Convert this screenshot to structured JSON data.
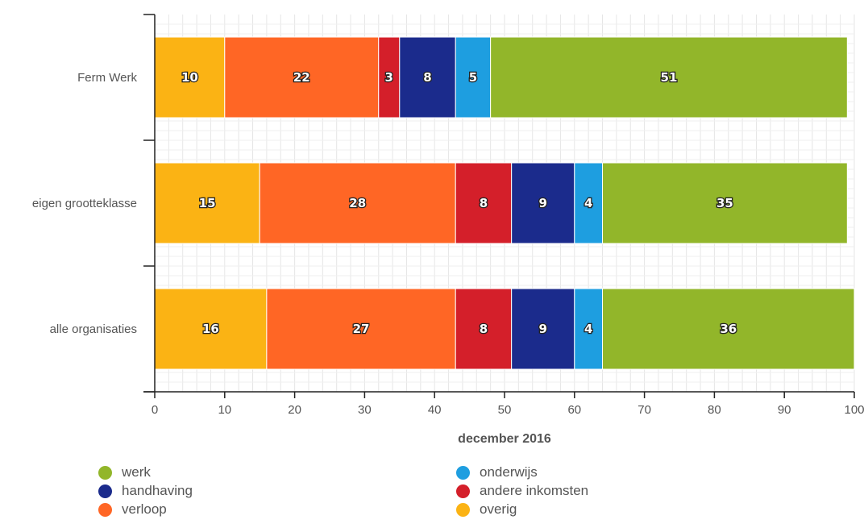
{
  "chart_data": {
    "type": "bar",
    "orientation": "horizontal",
    "stacked": true,
    "categories": [
      "Ferm Werk",
      "eigen grootteklasse",
      "alle organisaties"
    ],
    "series": [
      {
        "name": "overig",
        "color": "#fbb314",
        "values": [
          10,
          15,
          16
        ]
      },
      {
        "name": "verloop",
        "color": "#ff6625",
        "values": [
          22,
          28,
          27
        ]
      },
      {
        "name": "andere inkomsten",
        "color": "#d41f2a",
        "values": [
          3,
          8,
          8
        ]
      },
      {
        "name": "handhaving",
        "color": "#1b2b8c",
        "values": [
          8,
          9,
          9
        ]
      },
      {
        "name": "onderwijs",
        "color": "#1e9ee0",
        "values": [
          5,
          4,
          4
        ]
      },
      {
        "name": "werk",
        "color": "#92b62a",
        "values": [
          51,
          35,
          36
        ]
      }
    ],
    "xlabel": "december 2016",
    "ylabel": "",
    "xlim": [
      0,
      100
    ],
    "x_ticks": [
      0,
      10,
      20,
      30,
      40,
      50,
      60,
      70,
      80,
      90,
      100
    ],
    "grid": true,
    "legend_position": "bottom",
    "legend_order": [
      "werk",
      "onderwijs",
      "handhaving",
      "andere inkomsten",
      "verloop",
      "overig"
    ]
  }
}
